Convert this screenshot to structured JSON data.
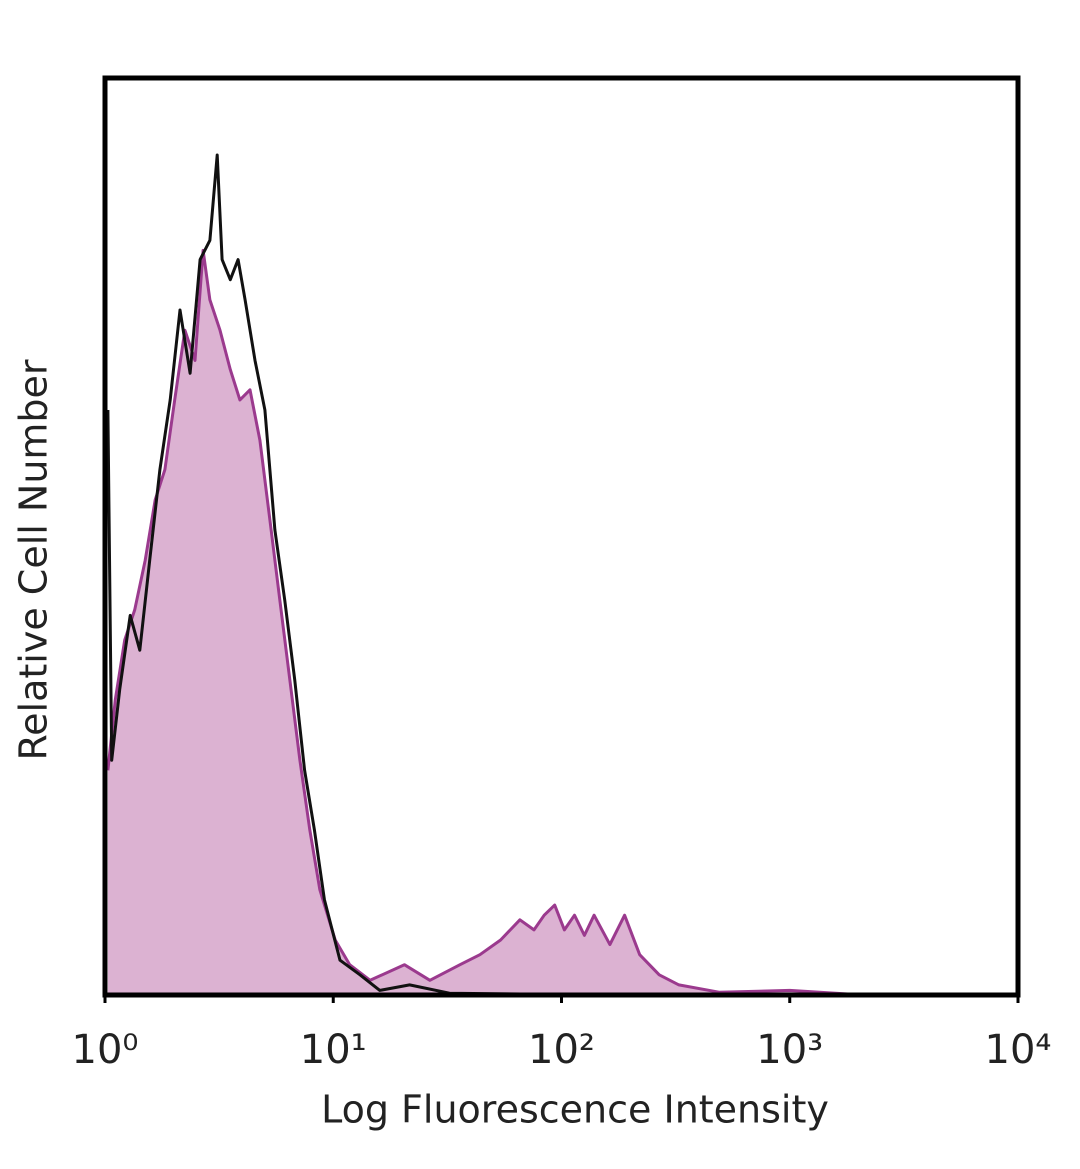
{
  "chart_data": {
    "type": "line",
    "xlabel": "Log Fluorescence Intensity",
    "ylabel": "Relative Cell Number",
    "xscale": "log",
    "xlim": [
      1,
      10000
    ],
    "xticks": [
      {
        "value": 1,
        "label": "10⁰"
      },
      {
        "value": 10,
        "label": "10¹"
      },
      {
        "value": 100,
        "label": "10²"
      },
      {
        "value": 1000,
        "label": "10³"
      },
      {
        "value": 10000,
        "label": "10⁴"
      }
    ],
    "ylim": [
      0,
      100
    ],
    "series": [
      {
        "color": "#9b3a8e",
        "fill": "#dcb2d2",
        "x": [
          1.03,
          1.11,
          1.22,
          1.35,
          1.5,
          1.66,
          1.83,
          2.02,
          2.24,
          2.48,
          2.69,
          2.88,
          3.19,
          3.54,
          3.9,
          4.32,
          4.77,
          5.28,
          5.83,
          6.45,
          7.14,
          7.89,
          8.73,
          10.2,
          11.8,
          14.5,
          20.5,
          26.5,
          35.9,
          43.9,
          54.1,
          65.7,
          75.8,
          84,
          93.4,
          103,
          114,
          126,
          139,
          163,
          189,
          220,
          268,
          327,
          490,
          1000,
          1830,
          10000
        ],
        "values": [
          24.5,
          32.2,
          38.7,
          42,
          47.4,
          54,
          57.3,
          64.9,
          72.5,
          69.2,
          81.2,
          75.8,
          72.5,
          68.2,
          64.9,
          66,
          60.5,
          51.8,
          43.1,
          34.4,
          25.6,
          18,
          11.5,
          6,
          3.3,
          1.6,
          3.3,
          1.6,
          3.3,
          4.4,
          6,
          8.2,
          7.1,
          8.7,
          9.8,
          7.1,
          8.7,
          6.5,
          8.7,
          5.5,
          8.7,
          4.4,
          2.2,
          1.1,
          0.3,
          0.5,
          0.1,
          0
        ]
      },
      {
        "color": "#111111",
        "x": [
          1.03,
          1.07,
          1.16,
          1.29,
          1.42,
          1.57,
          1.74,
          1.93,
          2.13,
          2.36,
          2.61,
          2.88,
          3.1,
          3.26,
          3.54,
          3.83,
          4.11,
          4.54,
          5.02,
          5.55,
          6.13,
          6.78,
          7.49,
          8.27,
          9.15,
          10.7,
          13.1,
          16,
          21.6,
          32.3,
          74.5,
          149,
          334,
          10000
        ],
        "values": [
          63.8,
          25.6,
          33.3,
          41.4,
          37.6,
          47.4,
          57.3,
          64.9,
          74.7,
          67.8,
          80.2,
          82.3,
          91.6,
          80.2,
          78,
          80.2,
          75.8,
          69.2,
          63.8,
          50.7,
          43.1,
          34.4,
          24.5,
          18,
          10.4,
          3.8,
          2.2,
          0.5,
          1.1,
          0.2,
          0.1,
          0.1,
          0.1,
          0
        ]
      }
    ]
  }
}
